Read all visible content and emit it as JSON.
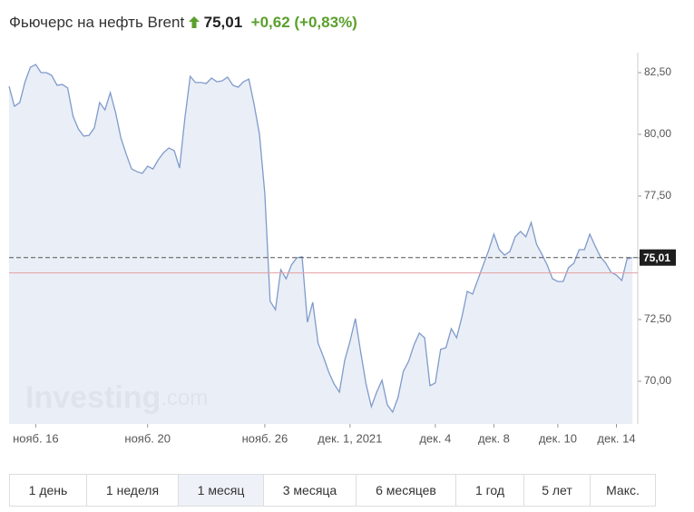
{
  "header": {
    "title": "Фьючерс на нефть Brent",
    "price": "75,01",
    "change": "+0,62",
    "change_pct": "(+0,83%)"
  },
  "chart_data": {
    "type": "area",
    "color": "#7f9bcb",
    "fill": "#e8ecf5",
    "values": [
      81.95,
      81.14,
      81.29,
      82.13,
      82.72,
      82.83,
      82.5,
      82.5,
      82.39,
      81.99,
      82.02,
      81.88,
      80.74,
      80.22,
      79.93,
      79.96,
      80.26,
      81.29,
      80.99,
      81.69,
      80.88,
      79.85,
      79.19,
      78.6,
      78.49,
      78.42,
      78.71,
      78.6,
      78.97,
      79.26,
      79.45,
      79.34,
      78.64,
      80.66,
      82.35,
      82.1,
      82.1,
      82.06,
      82.28,
      82.13,
      82.17,
      82.32,
      81.99,
      81.91,
      82.13,
      82.24,
      81.21,
      80.0,
      77.61,
      73.24,
      72.9,
      74.52,
      74.15,
      74.71,
      75.0,
      75.04,
      72.39,
      73.2,
      71.54,
      70.99,
      70.37,
      69.89,
      69.56,
      70.85,
      71.62,
      72.54,
      71.18,
      69.89,
      68.97,
      69.56,
      70.04,
      69.04,
      68.75,
      69.34,
      70.4,
      70.81,
      71.47,
      71.95,
      71.76,
      69.82,
      69.93,
      71.29,
      71.36,
      72.13,
      71.76,
      72.61,
      73.64,
      73.53,
      74.12,
      74.71,
      75.29,
      75.96,
      75.33,
      75.11,
      75.26,
      75.85,
      76.07,
      75.85,
      76.43,
      75.55,
      75.15,
      74.71,
      74.15,
      74.04,
      74.04,
      74.6,
      74.78,
      75.33,
      75.33,
      75.96,
      75.48,
      75.04,
      74.78,
      74.41,
      74.3,
      74.08,
      74.96,
      75.01
    ],
    "xlim": [
      0,
      118
    ],
    "xticks": [
      {
        "value": 5,
        "label": "нояб. 16"
      },
      {
        "value": 26,
        "label": "нояб. 20"
      },
      {
        "value": 48,
        "label": "нояб. 26"
      },
      {
        "value": 64,
        "label": "дек. 1, 2021"
      },
      {
        "value": 80,
        "label": "дек. 4"
      },
      {
        "value": 91,
        "label": "дек. 8"
      },
      {
        "value": 103,
        "label": "дек. 10"
      },
      {
        "value": 114,
        "label": "дек. 14"
      }
    ],
    "ylim": [
      68.27,
      83.31
    ],
    "yticks": [
      {
        "value": 70,
        "label": "70,00"
      },
      {
        "value": 72.5,
        "label": "72,50"
      },
      {
        "value": 75,
        "label": "75,00"
      },
      {
        "value": 77.5,
        "label": "77,50"
      },
      {
        "value": 80,
        "label": "80,00"
      },
      {
        "value": 82.5,
        "label": "82,50"
      }
    ],
    "last_price": {
      "value": 75.01,
      "label": "75,01"
    },
    "previous_close": 74.39,
    "watermark": [
      "Investing",
      ".com"
    ]
  },
  "periods": {
    "items": [
      "1 день",
      "1 неделя",
      "1 месяц",
      "3 месяца",
      "6 месяцев",
      "1 год",
      "5 лет",
      "Макс."
    ],
    "active": 2
  }
}
